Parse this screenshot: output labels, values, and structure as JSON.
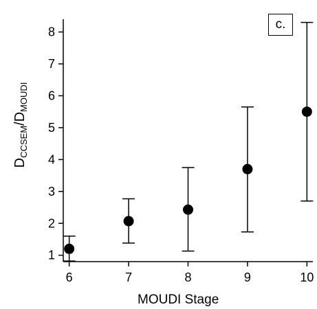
{
  "chart_data": {
    "type": "scatter",
    "panel_label": "c.",
    "xlabel": "MOUDI Stage",
    "ylabel": {
      "main": "D",
      "sub1": "CCSEM",
      "sep": "/D",
      "sub2": "MOUDI"
    },
    "xlim": [
      5.9,
      10.1
    ],
    "ylim": [
      0.8,
      8.4
    ],
    "x_ticks": [
      6,
      7,
      8,
      9,
      10
    ],
    "y_ticks": [
      1,
      2,
      3,
      4,
      5,
      6,
      7,
      8
    ],
    "grid": false,
    "series": [
      {
        "x": [
          6,
          7,
          8,
          9,
          10
        ],
        "y": [
          1.2,
          2.07,
          2.43,
          3.7,
          5.5
        ],
        "err_low": [
          0.82,
          1.38,
          1.13,
          1.73,
          2.7
        ],
        "err_high": [
          1.6,
          2.77,
          3.75,
          5.65,
          8.3
        ]
      }
    ],
    "colors": {
      "marker": "#000000",
      "axis": "#000000"
    }
  }
}
